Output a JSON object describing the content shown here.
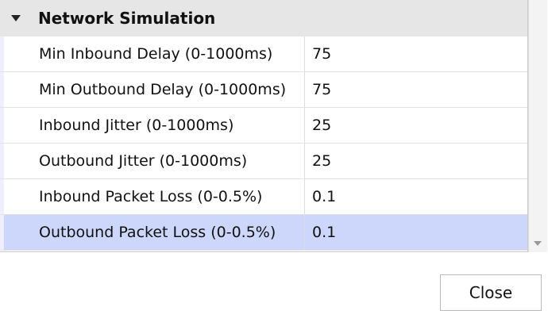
{
  "section": {
    "title": "Network Simulation",
    "rows": [
      [
        "Min Inbound Delay (0-1000ms)",
        "75"
      ],
      [
        "Min Outbound Delay (0-1000ms)",
        "75"
      ],
      [
        "Inbound Jitter (0-1000ms)",
        "25"
      ],
      [
        "Outbound Jitter (0-1000ms)",
        "25"
      ],
      [
        "Inbound Packet Loss (0-0.5%)",
        "0.1"
      ],
      [
        "Outbound Packet Loss (0-0.5%)",
        "0.1"
      ]
    ],
    "selected_row": 5
  },
  "buttons": {
    "close": "Close"
  }
}
